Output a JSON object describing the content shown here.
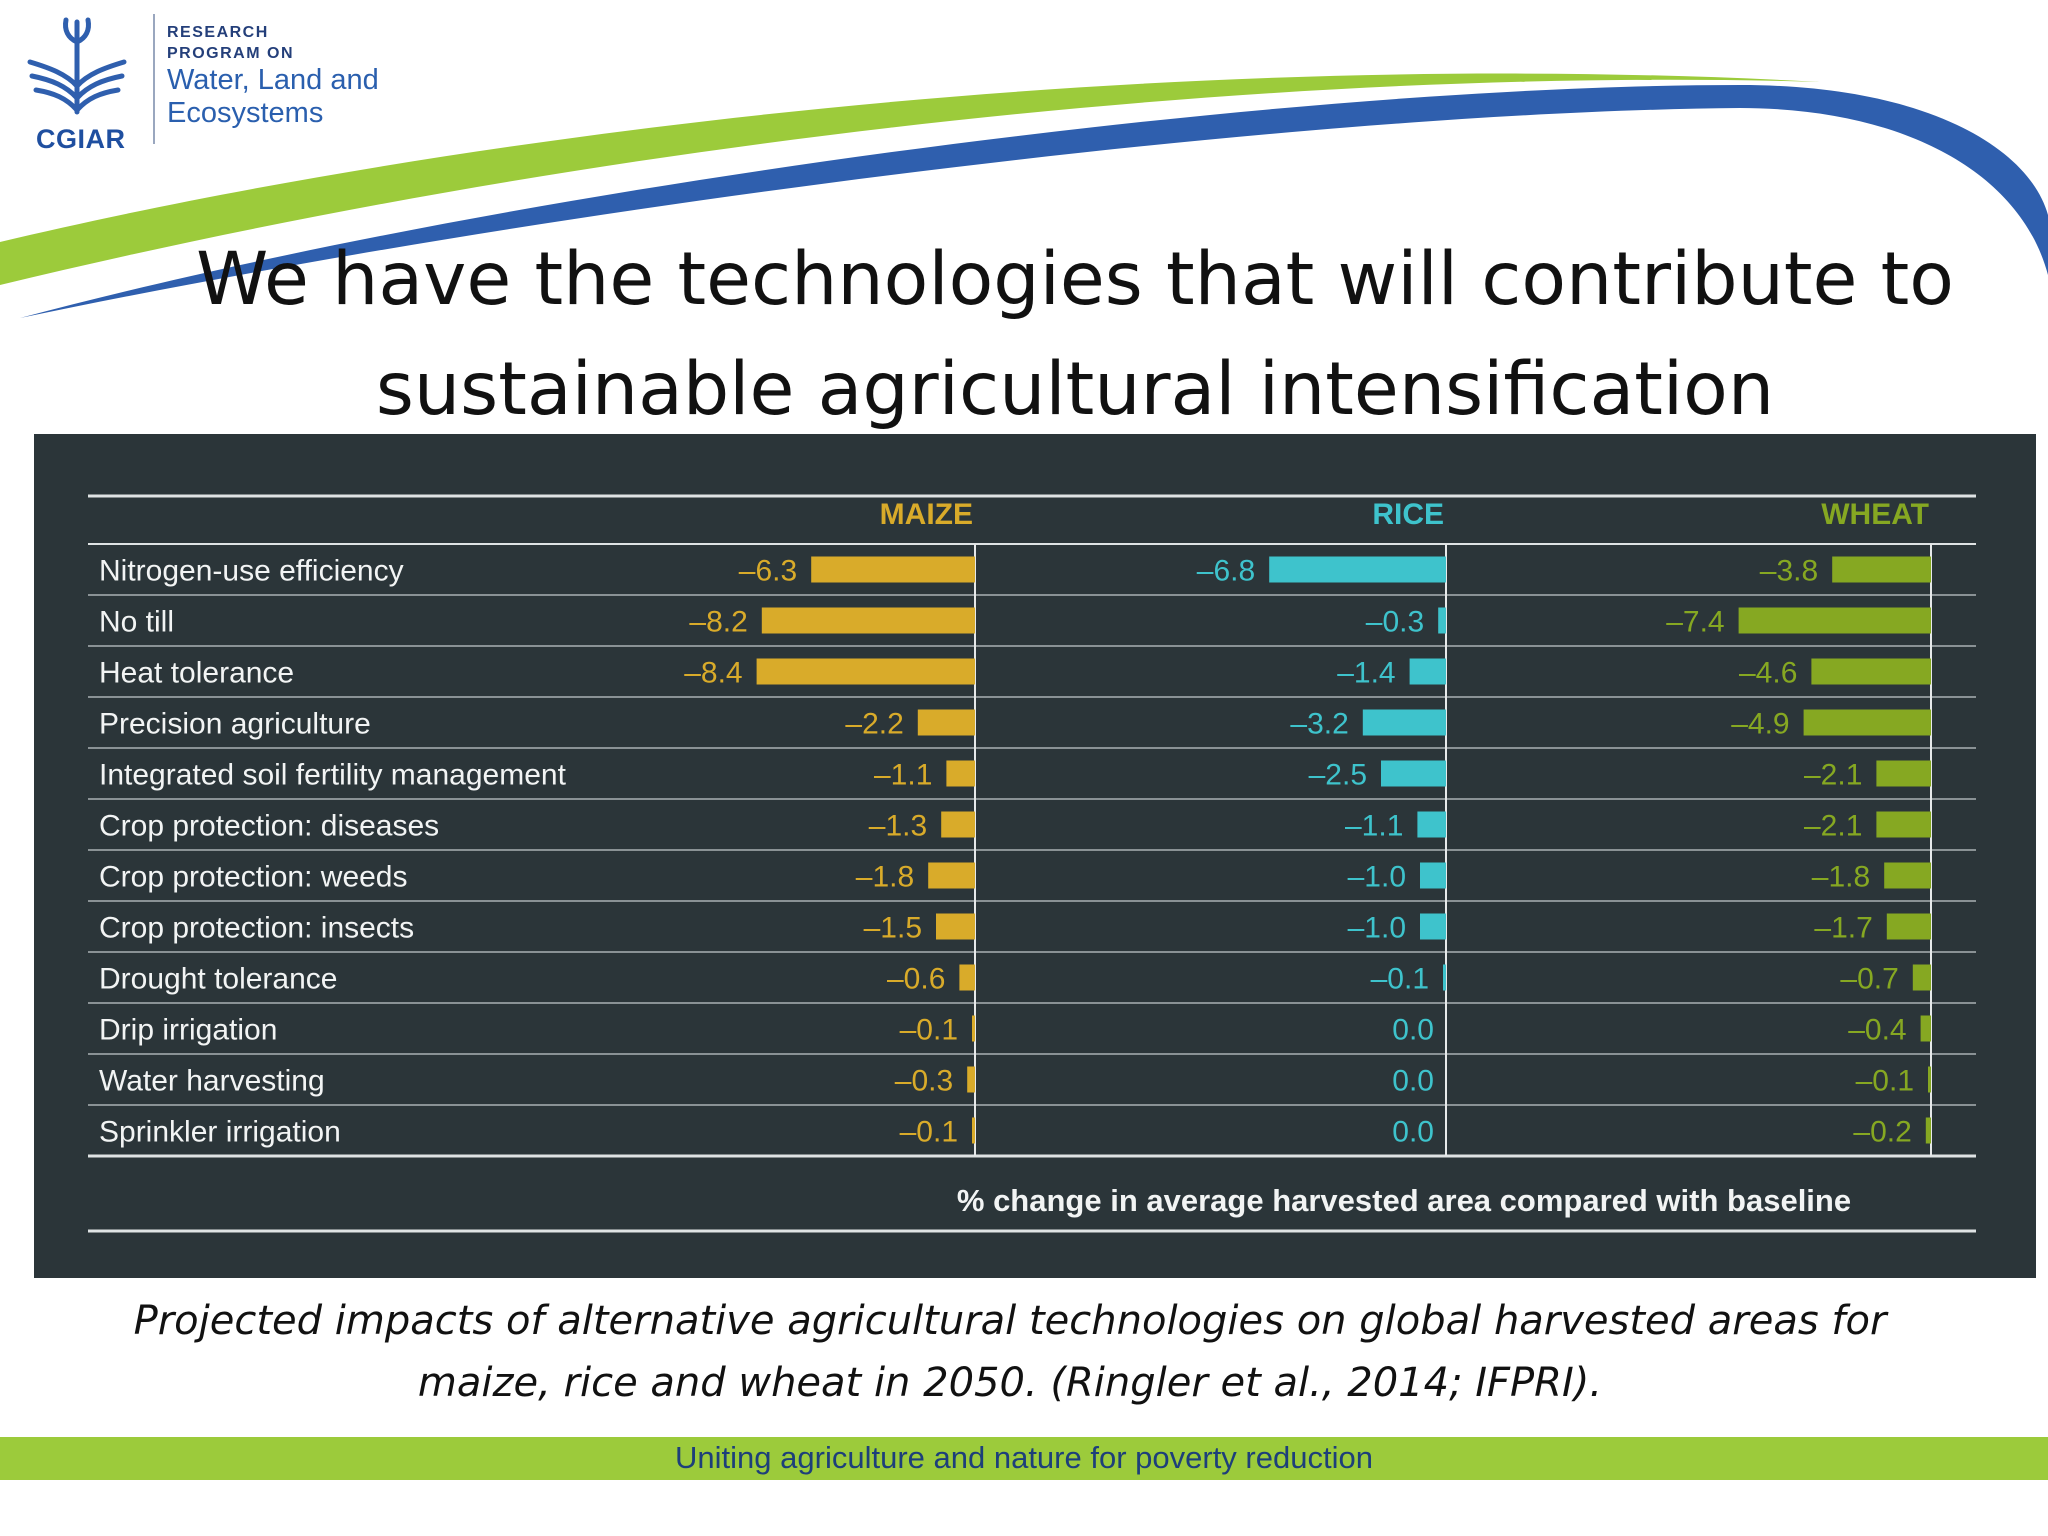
{
  "logo": {
    "org": "CGIAR",
    "line1": "RESEARCH",
    "line2": "PROGRAM ON",
    "line3": "Water, Land and",
    "line4": "Ecosystems"
  },
  "title_line1": "We have the technologies that will contribute to",
  "title_line2": "sustainable agricultural intensification",
  "caption_line1": "Projected impacts of alternative agricultural technologies on global harvested areas for",
  "caption_line2": "maize, rice and wheat in 2050. (Ringler et al., 2014; IFPRI).",
  "footer": "Uniting agriculture and nature for poverty reduction",
  "colors": {
    "maize": "#d9ab2a",
    "rice": "#3ec3cc",
    "wheat": "#86a822",
    "panel": "#2b3539",
    "footer_band": "#9ccb3b",
    "swoosh_green": "#9ccb3b",
    "swoosh_blue": "#2f5fae"
  },
  "chart_data": {
    "type": "bar",
    "orientation": "horizontal",
    "xlabel": "% change in average harvested area compared with baseline",
    "categories": [
      "Nitrogen-use efficiency",
      "No till",
      "Heat tolerance",
      "Precision agriculture",
      "Integrated soil fertility management",
      "Crop protection: diseases",
      "Crop protection: weeds",
      "Crop protection: insects",
      "Drought tolerance",
      "Drip irrigation",
      "Water harvesting",
      "Sprinkler irrigation"
    ],
    "series": [
      {
        "name": "MAIZE",
        "values": [
          -6.3,
          -8.2,
          -8.4,
          -2.2,
          -1.1,
          -1.3,
          -1.8,
          -1.5,
          -0.6,
          -0.1,
          -0.3,
          -0.1
        ],
        "labels": [
          "–6.3",
          "–8.2",
          "–8.4",
          "–2.2",
          "–1.1",
          "–1.3",
          "–1.8",
          "–1.5",
          "–0.6",
          "–0.1",
          "–0.3",
          "–0.1"
        ]
      },
      {
        "name": "RICE",
        "values": [
          -6.8,
          -0.3,
          -1.4,
          -3.2,
          -2.5,
          -1.1,
          -1.0,
          -1.0,
          -0.1,
          0.0,
          0.0,
          0.0
        ],
        "labels": [
          "–6.8",
          "–0.3",
          "–1.4",
          "–3.2",
          "–2.5",
          "–1.1",
          "–1.0",
          "–1.0",
          "–0.1",
          "0.0",
          "0.0",
          "0.0"
        ]
      },
      {
        "name": "WHEAT",
        "values": [
          -3.8,
          -7.4,
          -4.6,
          -4.9,
          -2.1,
          -2.1,
          -1.8,
          -1.7,
          -0.7,
          -0.4,
          -0.1,
          -0.2
        ],
        "labels": [
          "–3.8",
          "–7.4",
          "–4.6",
          "–4.9",
          "–2.1",
          "–2.1",
          "–1.8",
          "–1.7",
          "–0.7",
          "–0.4",
          "–0.1",
          "–0.2"
        ]
      }
    ]
  }
}
